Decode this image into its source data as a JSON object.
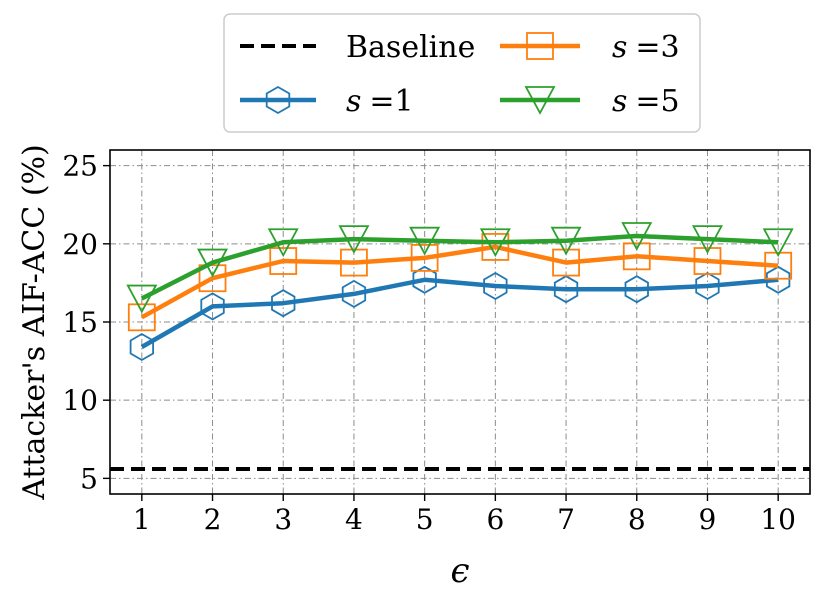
{
  "chart_data": {
    "type": "line",
    "xlabel": "ϵ",
    "ylabel": "Attacker's AIF-ACC (%)",
    "x": [
      1,
      2,
      3,
      4,
      5,
      6,
      7,
      8,
      9,
      10
    ],
    "xticks": [
      "1",
      "2",
      "3",
      "4",
      "5",
      "6",
      "7",
      "8",
      "9",
      "10"
    ],
    "yticks": [
      "5",
      "10",
      "15",
      "20",
      "25"
    ],
    "xlim": [
      0.55,
      10.45
    ],
    "ylim": [
      4.0,
      26.0
    ],
    "grid": true,
    "legend_position": "top-center",
    "baseline": {
      "name": "Baseline",
      "value": 5.6,
      "color": "#000000"
    },
    "series": [
      {
        "name": "s =1",
        "var": "s",
        "eq": "=1",
        "color": "#1f77b4",
        "marker": "hexagon",
        "values": [
          13.4,
          16.0,
          16.2,
          16.8,
          17.7,
          17.3,
          17.1,
          17.1,
          17.3,
          17.7
        ]
      },
      {
        "name": "s =3",
        "var": "s",
        "eq": "=3",
        "color": "#ff7f0e",
        "marker": "square",
        "values": [
          15.3,
          17.8,
          18.9,
          18.8,
          19.1,
          19.8,
          18.8,
          19.2,
          18.9,
          18.6
        ]
      },
      {
        "name": "s =5",
        "var": "s",
        "eq": "=5",
        "color": "#2ca02c",
        "marker": "triangle-down",
        "values": [
          16.5,
          18.8,
          20.1,
          20.3,
          20.2,
          20.1,
          20.2,
          20.5,
          20.3,
          20.1
        ]
      }
    ]
  }
}
